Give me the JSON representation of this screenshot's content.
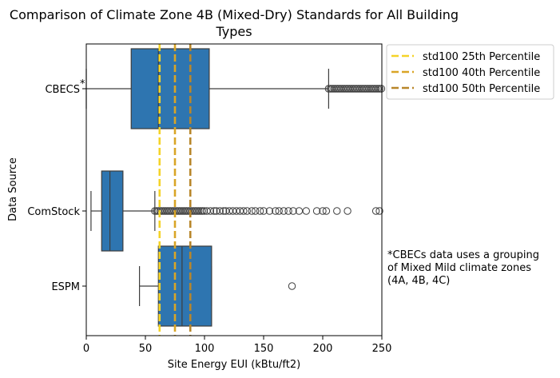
{
  "chart_data": {
    "type": "boxplot",
    "title_line1": "Comparison of Climate Zone 4B (Mixed-Dry) Standards for All Building",
    "title_line2": "Types",
    "xlabel": "Site Energy EUI (kBtu/ft2)",
    "ylabel": "Data Source",
    "xlim": [
      0,
      250
    ],
    "x_ticks": [
      0,
      50,
      100,
      150,
      200,
      250
    ],
    "orientation": "horizontal",
    "box_color": "#2e75b0",
    "categories": [
      {
        "label": "CBECS",
        "marker": "*",
        "whisker_low": 0,
        "q1": 38,
        "median": 61,
        "q3": 104,
        "whisker_high": 205,
        "outliers_range": [
          205,
          250
        ],
        "outliers": []
      },
      {
        "label": "ComStock",
        "marker": "",
        "whisker_low": 4,
        "q1": 13,
        "median": 20,
        "q3": 31,
        "whisker_high": 58,
        "outliers_range": [
          58,
          100
        ],
        "outliers": [
          102,
          105,
          108,
          110,
          113,
          116,
          118,
          121,
          124,
          127,
          130,
          133,
          136,
          140,
          143,
          147,
          150,
          155,
          160,
          163,
          167,
          171,
          175,
          180,
          186,
          195,
          200,
          203,
          212,
          221,
          245,
          248
        ]
      },
      {
        "label": "ESPM",
        "marker": "",
        "whisker_low": 45,
        "q1": 61,
        "median": 81,
        "q3": 106,
        "whisker_high": 106,
        "outliers_range": null,
        "outliers": [
          174
        ]
      }
    ],
    "reference_lines": [
      {
        "name": "std100 25th Percentile",
        "value": 62,
        "color": "#f5d328"
      },
      {
        "name": "std100 40th Percentile",
        "value": 75,
        "color": "#d9a526"
      },
      {
        "name": "std100 50th Percentile",
        "value": 88,
        "color": "#b8862a"
      }
    ],
    "legend_position": "outside-top-right",
    "annotation": "*CBECs data uses a grouping\nof Mixed Mild climate zones\n(4A, 4B, 4C)"
  }
}
